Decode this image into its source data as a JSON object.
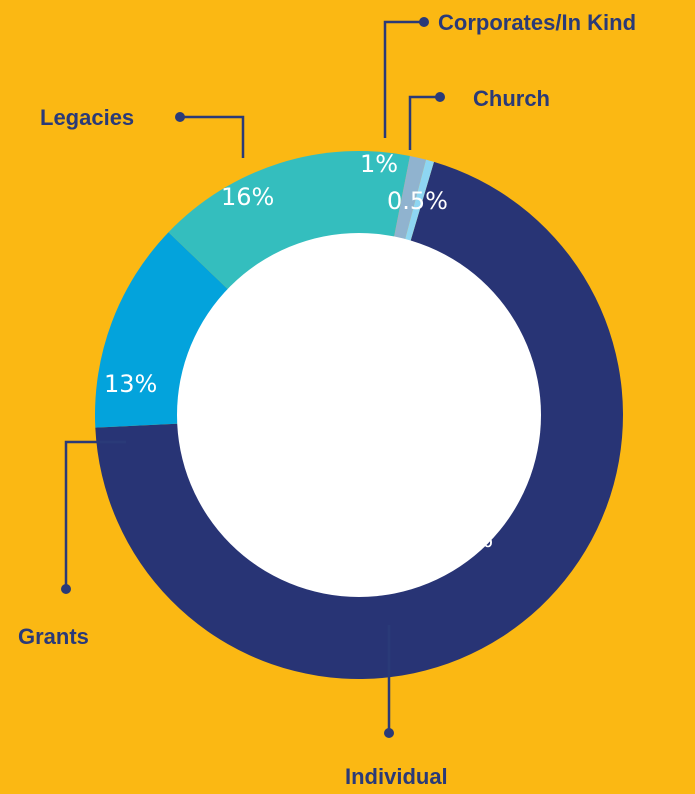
{
  "chart_data": {
    "type": "pie",
    "variant": "donut",
    "title": "",
    "slices": [
      {
        "name": "Individual",
        "value": 70,
        "label": "70%",
        "color": "#283475"
      },
      {
        "name": "Grants",
        "value": 13,
        "label": "13%",
        "color": "#03A3DC"
      },
      {
        "name": "Legacies",
        "value": 16,
        "label": "16%",
        "color": "#34BEBE"
      },
      {
        "name": "Corporates/In Kind",
        "value": 1,
        "label": "1%",
        "color": "#90B3CF"
      },
      {
        "name": "Church",
        "value": 0.5,
        "label": "0.5%",
        "color": "#8ED6F2"
      }
    ],
    "legend": "callouts with leader lines"
  },
  "colors": {
    "background": "#FBB813",
    "label_text": "#2A3A78",
    "percent_text": "#FFFFFF",
    "center_hole": "#FFFFFF"
  }
}
